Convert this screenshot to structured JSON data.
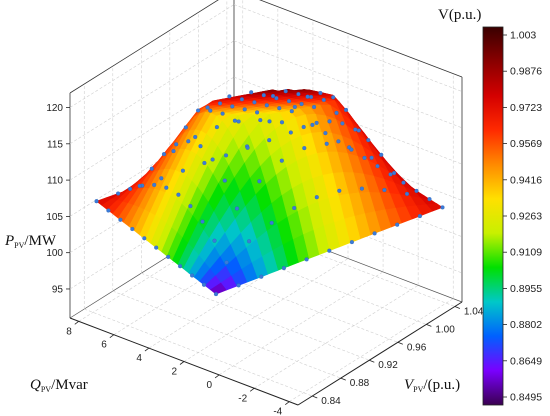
{
  "chart_data": {
    "type": "surface3d",
    "title": "",
    "z_axis": {
      "label_main": "P",
      "label_sub": "PV",
      "label_unit": "/MW",
      "ticks": [
        95,
        100,
        105,
        110,
        115,
        120
      ],
      "range": [
        91,
        122
      ]
    },
    "q_axis": {
      "label_main": "Q",
      "label_sub": "PV",
      "label_unit": "/Mvar",
      "ticks": [
        8,
        6,
        4,
        2,
        0,
        -2,
        -4
      ],
      "range": [
        -4.5,
        8.5
      ]
    },
    "v_axis": {
      "label_main": "V",
      "label_sub": "PV",
      "label_unit": "/(p.u.)",
      "ticks": [
        0.84,
        0.88,
        0.92,
        0.96,
        1.0,
        1.04
      ],
      "range": [
        0.82,
        1.05
      ]
    },
    "colorbar": {
      "title": "V(p.u.)",
      "ticks": [
        "1.003",
        "0.9876",
        "0.9723",
        "0.9569",
        "0.9416",
        "0.9263",
        "0.9109",
        "0.8955",
        "0.8802",
        "0.8649",
        "0.8495"
      ],
      "range": [
        0.8495,
        1.003
      ],
      "colors": [
        "#3a0000",
        "#8a0000",
        "#d40000",
        "#ff2a00",
        "#ff8a00",
        "#ffe000",
        "#c8f000",
        "#00e000",
        "#00c8c8",
        "#0060ff",
        "#7a00ff",
        "#3a0050"
      ]
    },
    "surface": {
      "apex_v": 0.8495,
      "max_v": 1.003,
      "peak_p": 119.5,
      "min_p": 98.5,
      "grid": 11
    }
  }
}
